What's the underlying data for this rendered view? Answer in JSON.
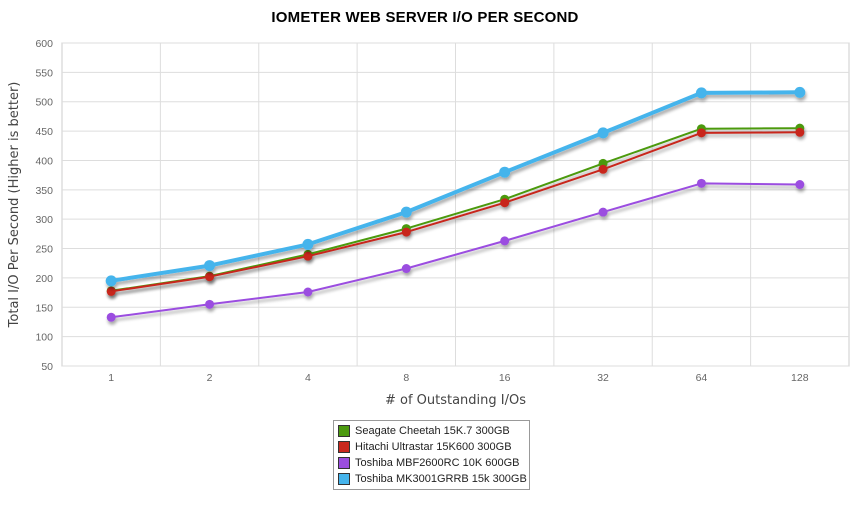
{
  "chart_data": {
    "type": "line",
    "title": "IOMETER WEB SERVER I/O PER SECOND",
    "xlabel": "# of Outstanding I/Os",
    "ylabel": "Total I/O Per Second (Higher is better)",
    "categories": [
      "1",
      "2",
      "4",
      "8",
      "16",
      "32",
      "64",
      "128"
    ],
    "ylim": [
      50,
      600
    ],
    "yticks": [
      50,
      100,
      150,
      200,
      250,
      300,
      350,
      400,
      450,
      500,
      550,
      600
    ],
    "grid": true,
    "legend_position": "bottom",
    "series": [
      {
        "name": "Seagate Cheetah 15K.7 300GB",
        "color": "#4c9a0f",
        "values": [
          178,
          203,
          240,
          284,
          334,
          395,
          454,
          455
        ]
      },
      {
        "name": "Hitachi Ultrastar 15K600 300GB",
        "color": "#c8281e",
        "values": [
          177,
          202,
          237,
          278,
          328,
          385,
          447,
          448
        ]
      },
      {
        "name": "Toshiba MBF2600RC 10K 600GB",
        "color": "#9b4ee0",
        "values": [
          133,
          155,
          176,
          216,
          263,
          312,
          361,
          359
        ]
      },
      {
        "name": "Toshiba MK3001GRRB 15k 300GB",
        "color": "#45b4ec",
        "values": [
          195,
          221,
          257,
          312,
          380,
          447,
          515,
          516
        ]
      }
    ]
  }
}
